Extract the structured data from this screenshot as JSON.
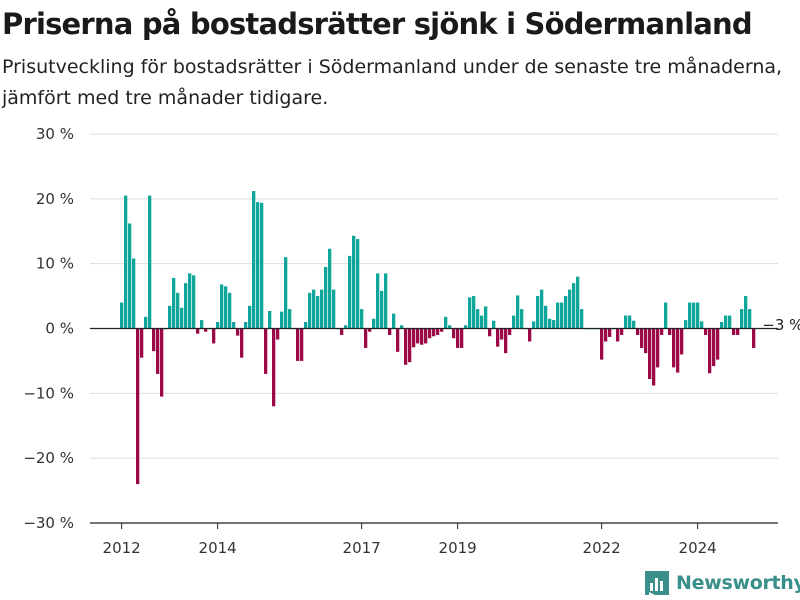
{
  "title": "Priserna på bostadsrätter sjönk i Södermanland",
  "subtitle": "Prisutveckling för bostadsrätter i Södermanland under de senaste tre månaderna, jämfört med tre månader tidigare.",
  "brand": {
    "name": "Newsworthy",
    "color": "#3a8f8a",
    "icon": "bar-chart-logo-icon"
  },
  "colors": {
    "positive": "#0fa59b",
    "negative": "#9b0a47",
    "grid": "#dddddd",
    "axis": "#222222"
  },
  "chart_data": {
    "type": "bar",
    "y_unit": "%",
    "ylim": [
      -30,
      30
    ],
    "yticks": [
      30,
      20,
      10,
      0,
      -10,
      -20,
      -30
    ],
    "ytick_labels": [
      "30 %",
      "20 %",
      "10 %",
      "0 %",
      "−10 %",
      "−20 %",
      "−30 %"
    ],
    "grid": true,
    "x_start": "2012-01",
    "xticks": [
      {
        "label": "2012",
        "month_index": 0
      },
      {
        "label": "2014",
        "month_index": 24
      },
      {
        "label": "2017",
        "month_index": 60
      },
      {
        "label": "2019",
        "month_index": 84
      },
      {
        "label": "2022",
        "month_index": 120
      },
      {
        "label": "2024",
        "month_index": 144
      }
    ],
    "annotation": {
      "label": "−3 %",
      "month_index": 155
    },
    "values": [
      4,
      20.5,
      16.2,
      10.8,
      -24,
      -4.5,
      1.8,
      20.5,
      -3.5,
      -7,
      -10.5,
      0,
      3.5,
      7.8,
      5.5,
      3.2,
      7,
      8.5,
      8.2,
      -0.8,
      1.3,
      -0.5,
      0,
      -2.3,
      1,
      6.8,
      6.5,
      5.5,
      1,
      -1.1,
      -4.5,
      1,
      3.5,
      21.2,
      19.5,
      19.4,
      -7,
      2.7,
      -12,
      -1.7,
      2.6,
      11,
      3,
      0,
      -5,
      -5,
      1,
      5.5,
      6,
      5,
      6,
      9.5,
      12.3,
      6,
      0,
      -1,
      0.5,
      11.2,
      14.3,
      13.8,
      3,
      -3,
      -0.5,
      1.5,
      8.5,
      5.8,
      8.5,
      -1,
      2.3,
      -3.6,
      0.5,
      -5.6,
      -5.2,
      -2.9,
      -2.3,
      -2.5,
      -2.3,
      -1.5,
      -1.2,
      -1,
      -0.5,
      1.8,
      0.5,
      -1.5,
      -3,
      -3,
      0.5,
      4.8,
      5,
      3,
      2,
      3.4,
      -1.2,
      1.2,
      -2.8,
      -1.7,
      -3.8,
      -1,
      2,
      5.1,
      3,
      0,
      -2,
      1.1,
      5,
      6,
      3.5,
      1.5,
      1.3,
      4,
      4,
      5,
      6,
      7,
      8,
      3,
      0,
      0,
      0,
      0,
      -4.8,
      -2,
      -1.3,
      0,
      -2,
      -1,
      2,
      2,
      1.2,
      -1,
      -3,
      -3.8,
      -7.8,
      -8.8,
      -6,
      -1,
      4,
      -1,
      -6,
      -6.8,
      -4,
      1.3,
      4,
      4,
      4,
      1.1,
      -1,
      -6.9,
      -5.8,
      -4.8,
      1,
      2,
      2,
      -1,
      -1,
      3,
      5,
      3,
      -3
    ]
  }
}
